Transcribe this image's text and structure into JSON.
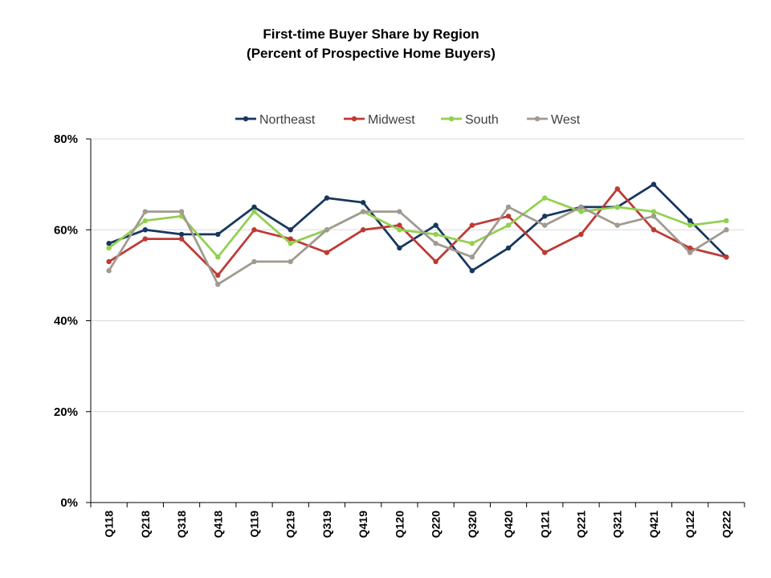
{
  "chart_data": {
    "type": "line",
    "title": "First-time Buyer Share by Region",
    "subtitle": "(Percent of Prospective Home Buyers)",
    "xlabel": "",
    "ylabel": "",
    "ylim": [
      0,
      80
    ],
    "y_ticks": [
      0,
      20,
      40,
      60,
      80
    ],
    "y_tick_labels": [
      "0%",
      "20%",
      "40%",
      "60%",
      "80%"
    ],
    "grid": true,
    "legend_position": "top",
    "categories": [
      "Q118",
      "Q218",
      "Q318",
      "Q418",
      "Q119",
      "Q219",
      "Q319",
      "Q419",
      "Q120",
      "Q220",
      "Q320",
      "Q420",
      "Q121",
      "Q221",
      "Q321",
      "Q421",
      "Q122",
      "Q222"
    ],
    "series": [
      {
        "name": "Northeast",
        "color": "#17375e",
        "values": [
          57,
          60,
          59,
          59,
          65,
          60,
          67,
          66,
          56,
          61,
          51,
          56,
          63,
          65,
          65,
          70,
          62,
          54
        ]
      },
      {
        "name": "Midwest",
        "color": "#be3a34",
        "values": [
          53,
          58,
          58,
          50,
          60,
          58,
          55,
          60,
          61,
          53,
          61,
          63,
          55,
          59,
          69,
          60,
          56,
          54
        ]
      },
      {
        "name": "South",
        "color": "#92d050",
        "values": [
          56,
          62,
          63,
          54,
          64,
          57,
          60,
          64,
          60,
          59,
          57,
          61,
          67,
          64,
          65,
          64,
          61,
          62
        ]
      },
      {
        "name": "West",
        "color": "#a09a90",
        "values": [
          51,
          64,
          64,
          48,
          53,
          53,
          60,
          64,
          64,
          57,
          54,
          65,
          61,
          65,
          61,
          63,
          55,
          60
        ]
      }
    ]
  }
}
